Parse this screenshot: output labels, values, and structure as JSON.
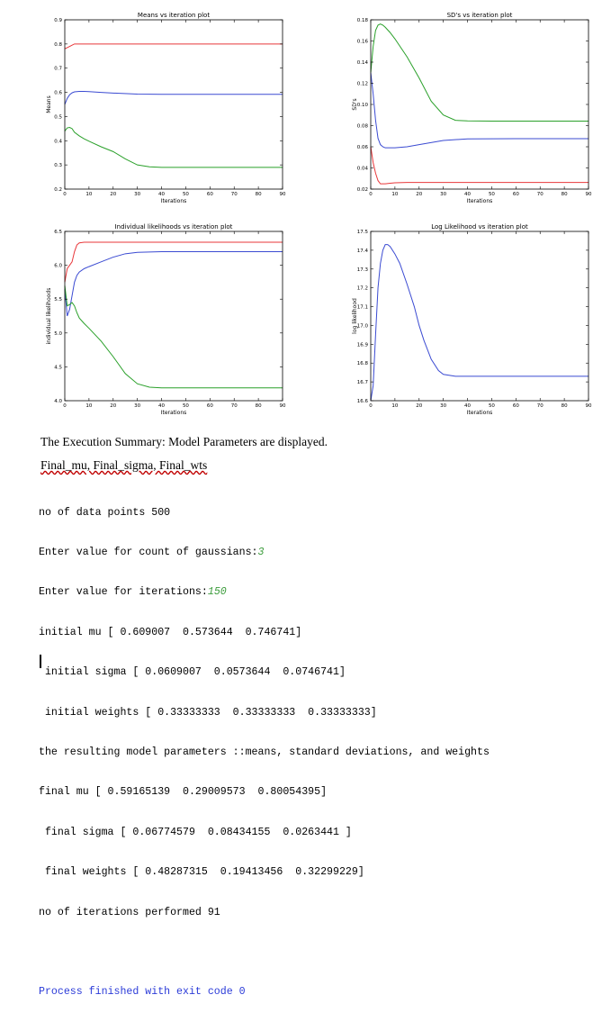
{
  "chart_data": [
    {
      "type": "line",
      "title": "Means vs iteration plot",
      "xlabel": "Iterations",
      "ylabel": "Means",
      "xlim": [
        0,
        90
      ],
      "ylim": [
        0.2,
        0.9
      ],
      "xticks": [
        "0",
        "10",
        "20",
        "30",
        "40",
        "50",
        "60",
        "70",
        "80",
        "90"
      ],
      "yticks": [
        "0.2",
        "0.3",
        "0.4",
        "0.5",
        "0.6",
        "0.7",
        "0.8",
        "0.9"
      ],
      "grid": false,
      "series": [
        {
          "color": "#e8373a",
          "x": [
            0,
            1,
            2,
            3,
            4,
            6,
            10,
            20,
            40,
            60,
            90
          ],
          "y": [
            0.78,
            0.785,
            0.79,
            0.795,
            0.8,
            0.8,
            0.8,
            0.8,
            0.8,
            0.8,
            0.8
          ]
        },
        {
          "color": "#3b4bd2",
          "x": [
            0,
            1,
            2,
            3,
            4,
            6,
            8,
            10,
            15,
            20,
            30,
            40,
            60,
            90
          ],
          "y": [
            0.55,
            0.575,
            0.59,
            0.598,
            0.602,
            0.604,
            0.604,
            0.603,
            0.6,
            0.597,
            0.593,
            0.592,
            0.592,
            0.592
          ]
        },
        {
          "color": "#2aa02a",
          "x": [
            0,
            1,
            2,
            3,
            4,
            6,
            8,
            10,
            15,
            20,
            25,
            30,
            35,
            40,
            50,
            60,
            90
          ],
          "y": [
            0.44,
            0.453,
            0.455,
            0.45,
            0.435,
            0.42,
            0.408,
            0.398,
            0.375,
            0.355,
            0.325,
            0.3,
            0.292,
            0.29,
            0.29,
            0.29,
            0.29
          ]
        }
      ]
    },
    {
      "type": "line",
      "title": "SD's vs iteration plot",
      "xlabel": "Iterations",
      "ylabel": "SD's",
      "xlim": [
        0,
        90
      ],
      "ylim": [
        0.02,
        0.18
      ],
      "xticks": [
        "0",
        "10",
        "20",
        "30",
        "40",
        "50",
        "60",
        "70",
        "80",
        "90"
      ],
      "yticks": [
        "0.02",
        "0.04",
        "0.06",
        "0.08",
        "0.10",
        "0.12",
        "0.14",
        "0.16",
        "0.18"
      ],
      "grid": false,
      "series": [
        {
          "color": "#e8373a",
          "x": [
            0,
            1,
            2,
            3,
            4,
            6,
            8,
            10,
            15,
            20,
            30,
            40,
            60,
            90
          ],
          "y": [
            0.06,
            0.045,
            0.035,
            0.028,
            0.025,
            0.025,
            0.0255,
            0.026,
            0.0263,
            0.0263,
            0.0263,
            0.0263,
            0.0263,
            0.0263
          ]
        },
        {
          "color": "#3b4bd2",
          "x": [
            0,
            1,
            2,
            3,
            4,
            5,
            6,
            8,
            10,
            15,
            20,
            30,
            40,
            60,
            90
          ],
          "y": [
            0.13,
            0.11,
            0.085,
            0.068,
            0.062,
            0.06,
            0.059,
            0.059,
            0.059,
            0.06,
            0.062,
            0.066,
            0.0675,
            0.0677,
            0.0677
          ]
        },
        {
          "color": "#2aa02a",
          "x": [
            0,
            1,
            2,
            3,
            4,
            5,
            6,
            8,
            10,
            15,
            20,
            25,
            30,
            35,
            40,
            50,
            60,
            90
          ],
          "y": [
            0.13,
            0.155,
            0.17,
            0.175,
            0.176,
            0.175,
            0.173,
            0.168,
            0.162,
            0.145,
            0.125,
            0.103,
            0.09,
            0.085,
            0.0845,
            0.0843,
            0.0843,
            0.0843
          ]
        }
      ]
    },
    {
      "type": "line",
      "title": "Individual likelihoods vs iteration plot",
      "xlabel": "Iterations",
      "ylabel": "individual likelihoods",
      "xlim": [
        0,
        90
      ],
      "ylim": [
        4.0,
        6.5
      ],
      "xticks": [
        "0",
        "10",
        "20",
        "30",
        "40",
        "50",
        "60",
        "70",
        "80",
        "90"
      ],
      "yticks": [
        "4.0",
        "4.5",
        "5.0",
        "5.5",
        "6.0",
        "6.5"
      ],
      "grid": false,
      "series": [
        {
          "color": "#e8373a",
          "x": [
            0,
            1,
            2,
            3,
            4,
            5,
            6,
            8,
            10,
            20,
            40,
            60,
            90
          ],
          "y": [
            5.75,
            5.95,
            6.0,
            6.05,
            6.2,
            6.3,
            6.33,
            6.34,
            6.34,
            6.34,
            6.34,
            6.34,
            6.34
          ]
        },
        {
          "color": "#3b4bd2",
          "x": [
            0,
            1,
            2,
            3,
            4,
            5,
            6,
            8,
            10,
            15,
            20,
            25,
            30,
            40,
            60,
            90
          ],
          "y": [
            5.65,
            5.25,
            5.35,
            5.55,
            5.75,
            5.85,
            5.9,
            5.95,
            5.98,
            6.05,
            6.12,
            6.17,
            6.19,
            6.2,
            6.2,
            6.2
          ]
        },
        {
          "color": "#2aa02a",
          "x": [
            0,
            1,
            2,
            3,
            4,
            5,
            6,
            8,
            10,
            15,
            20,
            25,
            30,
            35,
            40,
            50,
            60,
            90
          ],
          "y": [
            5.7,
            5.4,
            5.42,
            5.45,
            5.4,
            5.3,
            5.22,
            5.14,
            5.07,
            4.88,
            4.65,
            4.4,
            4.25,
            4.2,
            4.19,
            4.19,
            4.19,
            4.19
          ]
        }
      ]
    },
    {
      "type": "line",
      "title": "Log Likelihood vs iteration plot",
      "xlabel": "Iterations",
      "ylabel": "log likelihood",
      "xlim": [
        0,
        90
      ],
      "ylim": [
        16.6,
        17.5
      ],
      "xticks": [
        "0",
        "10",
        "20",
        "30",
        "40",
        "50",
        "60",
        "70",
        "80",
        "90"
      ],
      "yticks": [
        "16.6",
        "16.7",
        "16.8",
        "16.9",
        "17.0",
        "17.1",
        "17.2",
        "17.3",
        "17.4",
        "17.5"
      ],
      "grid": false,
      "series": [
        {
          "color": "#3b4bd2",
          "x": [
            0,
            1,
            2,
            3,
            4,
            5,
            6,
            7,
            8,
            10,
            12,
            15,
            18,
            20,
            22,
            25,
            28,
            30,
            35,
            40,
            50,
            60,
            90
          ],
          "y": [
            16.6,
            16.68,
            16.95,
            17.2,
            17.33,
            17.4,
            17.43,
            17.43,
            17.42,
            17.38,
            17.33,
            17.22,
            17.1,
            17.0,
            16.92,
            16.82,
            16.76,
            16.74,
            16.73,
            16.73,
            16.73,
            16.73,
            16.73
          ]
        }
      ]
    }
  ],
  "summary": {
    "heading": "The Execution Summary: Model Parameters are displayed.",
    "finals": "Final_mu, Final_sigma, Final_wts"
  },
  "console": {
    "line1": "no of data points 500",
    "line2_prompt": "Enter value for count of gaussians:",
    "line2_input": "3",
    "line3_prompt": "Enter value for iterations:",
    "line3_input": "150",
    "line4": "initial mu [ 0.609007  0.573644  0.746741]",
    "line5": " initial sigma [ 0.0609007  0.0573644  0.0746741]",
    "line6": " initial weights [ 0.33333333  0.33333333  0.33333333]",
    "line7": "the resulting model parameters ::means, standard deviations, and weights",
    "line8": "final mu [ 0.59165139  0.29009573  0.80054395]",
    "line9": " final sigma [ 0.06774579  0.08434155  0.0263441 ]",
    "line10": " final weights [ 0.48287315  0.19413456  0.32299229]",
    "line11": "no of iterations performed 91",
    "line12": "Process finished with exit code 0"
  }
}
